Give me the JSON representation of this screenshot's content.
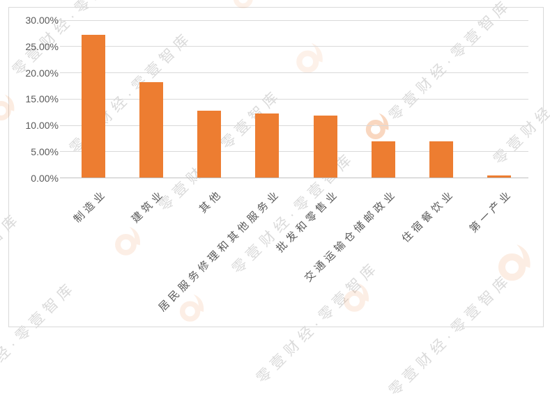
{
  "chart_data": {
    "type": "bar",
    "title": "",
    "categories": [
      "制造业",
      "建筑业",
      "其他",
      "居民服务修理和其他服务业",
      "批发和零售业",
      "交通运输仓储邮政业",
      "住宿餐饮业",
      "第一产业"
    ],
    "values": [
      27.2,
      18.2,
      12.8,
      12.2,
      11.9,
      6.9,
      6.9,
      0.4
    ],
    "value_unit": "%",
    "ylim": [
      0,
      30
    ],
    "ytick_step": 5,
    "ytick_labels": [
      "0.00%",
      "5.00%",
      "10.00%",
      "15.00%",
      "20.00%",
      "25.00%",
      "30.00%"
    ],
    "grid": true,
    "legend": false,
    "bar_color": "#ED7D31",
    "gridline_color": "#D9D9D9",
    "axis_line_color": "#C0C0C0",
    "tick_label_color": "#595959",
    "category_label_color": "#595959"
  },
  "watermark": {
    "text": "零壹财经·零壹智库",
    "logo_icon": "01caijing-a-logo",
    "text_color": "#DADADA",
    "logo_color": "#ED7D31"
  },
  "frame_color": "#D9D9D9"
}
